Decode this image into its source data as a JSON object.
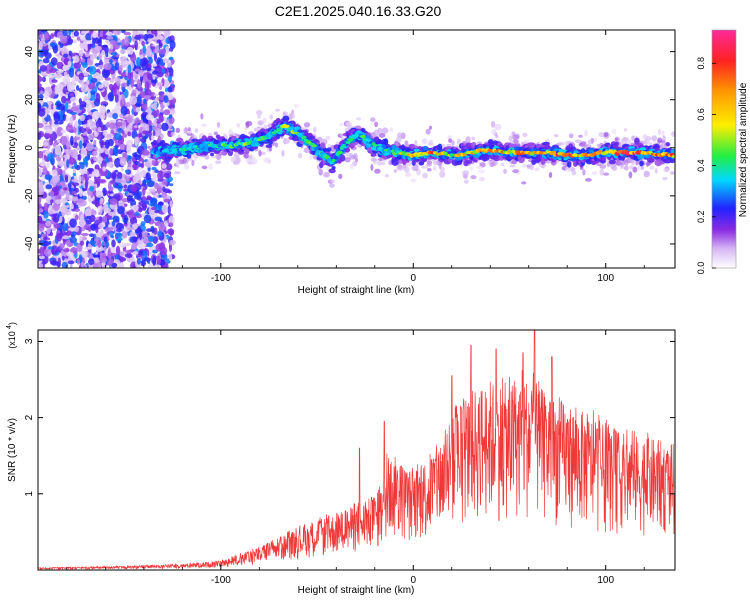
{
  "title": "C2E1.2025.040.16.33.G20",
  "chart_data": [
    {
      "type": "heatmap",
      "xlabel": "Height of straight line (km)",
      "ylabel": "Frequency (Hz)",
      "xlim": [
        -195,
        136
      ],
      "ylim": [
        -50,
        49
      ],
      "xticks": [
        -100,
        0,
        100
      ],
      "yticks": [
        -40,
        -20,
        0,
        20,
        40
      ],
      "colorbar": {
        "label": "Normalized spectral amplitude",
        "range": [
          0,
          0.93
        ],
        "ticks": [
          0.0,
          0.2,
          0.4,
          0.6,
          0.8
        ]
      },
      "ridge": {
        "x": [
          -145,
          -135,
          -125,
          -115,
          -105,
          -95,
          -85,
          -75,
          -67,
          -60,
          -52,
          -47,
          -42,
          -35,
          -28,
          -22,
          -16,
          -8,
          0,
          10,
          20,
          30,
          40,
          50,
          60,
          70,
          80,
          90,
          100,
          110,
          120,
          130,
          136
        ],
        "y": [
          -3,
          -2,
          -1,
          0,
          1,
          1,
          2,
          5,
          9,
          6,
          1,
          -3,
          -6,
          2,
          6,
          2,
          -1,
          -2,
          -3,
          -2,
          -3,
          -2,
          -1,
          -2,
          -2,
          -2,
          -3,
          -3,
          -2,
          -2,
          -2,
          -3,
          -3
        ],
        "peak_amplitude": [
          0.3,
          0.35,
          0.4,
          0.45,
          0.5,
          0.5,
          0.55,
          0.55,
          0.6,
          0.55,
          0.5,
          0.45,
          0.45,
          0.45,
          0.5,
          0.45,
          0.45,
          0.6,
          0.7,
          0.85,
          0.7,
          0.7,
          0.75,
          0.8,
          0.8,
          0.85,
          0.85,
          0.9,
          0.9,
          0.9,
          0.9,
          0.9,
          0.85
        ]
      }
    },
    {
      "type": "line",
      "xlabel": "Height of straight line (km)",
      "ylabel": "SNR (10 * v/v)",
      "yscale_label": "(x10",
      "yscale_exp": "4",
      "xlim": [
        -195,
        136
      ],
      "ylim": [
        0,
        3.15
      ],
      "xticks": [
        -100,
        0,
        100
      ],
      "yticks": [
        1,
        2,
        3
      ],
      "series": [
        {
          "color": "#ef3838",
          "envelope_x": [
            -195,
            -150,
            -120,
            -100,
            -80,
            -60,
            -40,
            -25,
            -15,
            -14,
            0,
            10,
            20,
            30,
            40,
            50,
            60,
            70,
            80,
            90,
            100,
            110,
            120,
            130,
            136
          ],
          "envelope_y": [
            0.03,
            0.05,
            0.08,
            0.12,
            0.3,
            0.55,
            0.75,
            0.9,
            1.1,
            1.55,
            1.3,
            1.55,
            2.0,
            2.35,
            2.5,
            2.45,
            2.55,
            2.3,
            2.2,
            2.05,
            1.9,
            1.8,
            1.75,
            1.7,
            1.65
          ],
          "peak_x": [
            -28,
            -15,
            20,
            30,
            43,
            57,
            63,
            72
          ],
          "peak_y": [
            1.6,
            1.95,
            2.55,
            2.95,
            2.9,
            2.85,
            3.15,
            2.8
          ]
        }
      ]
    }
  ]
}
